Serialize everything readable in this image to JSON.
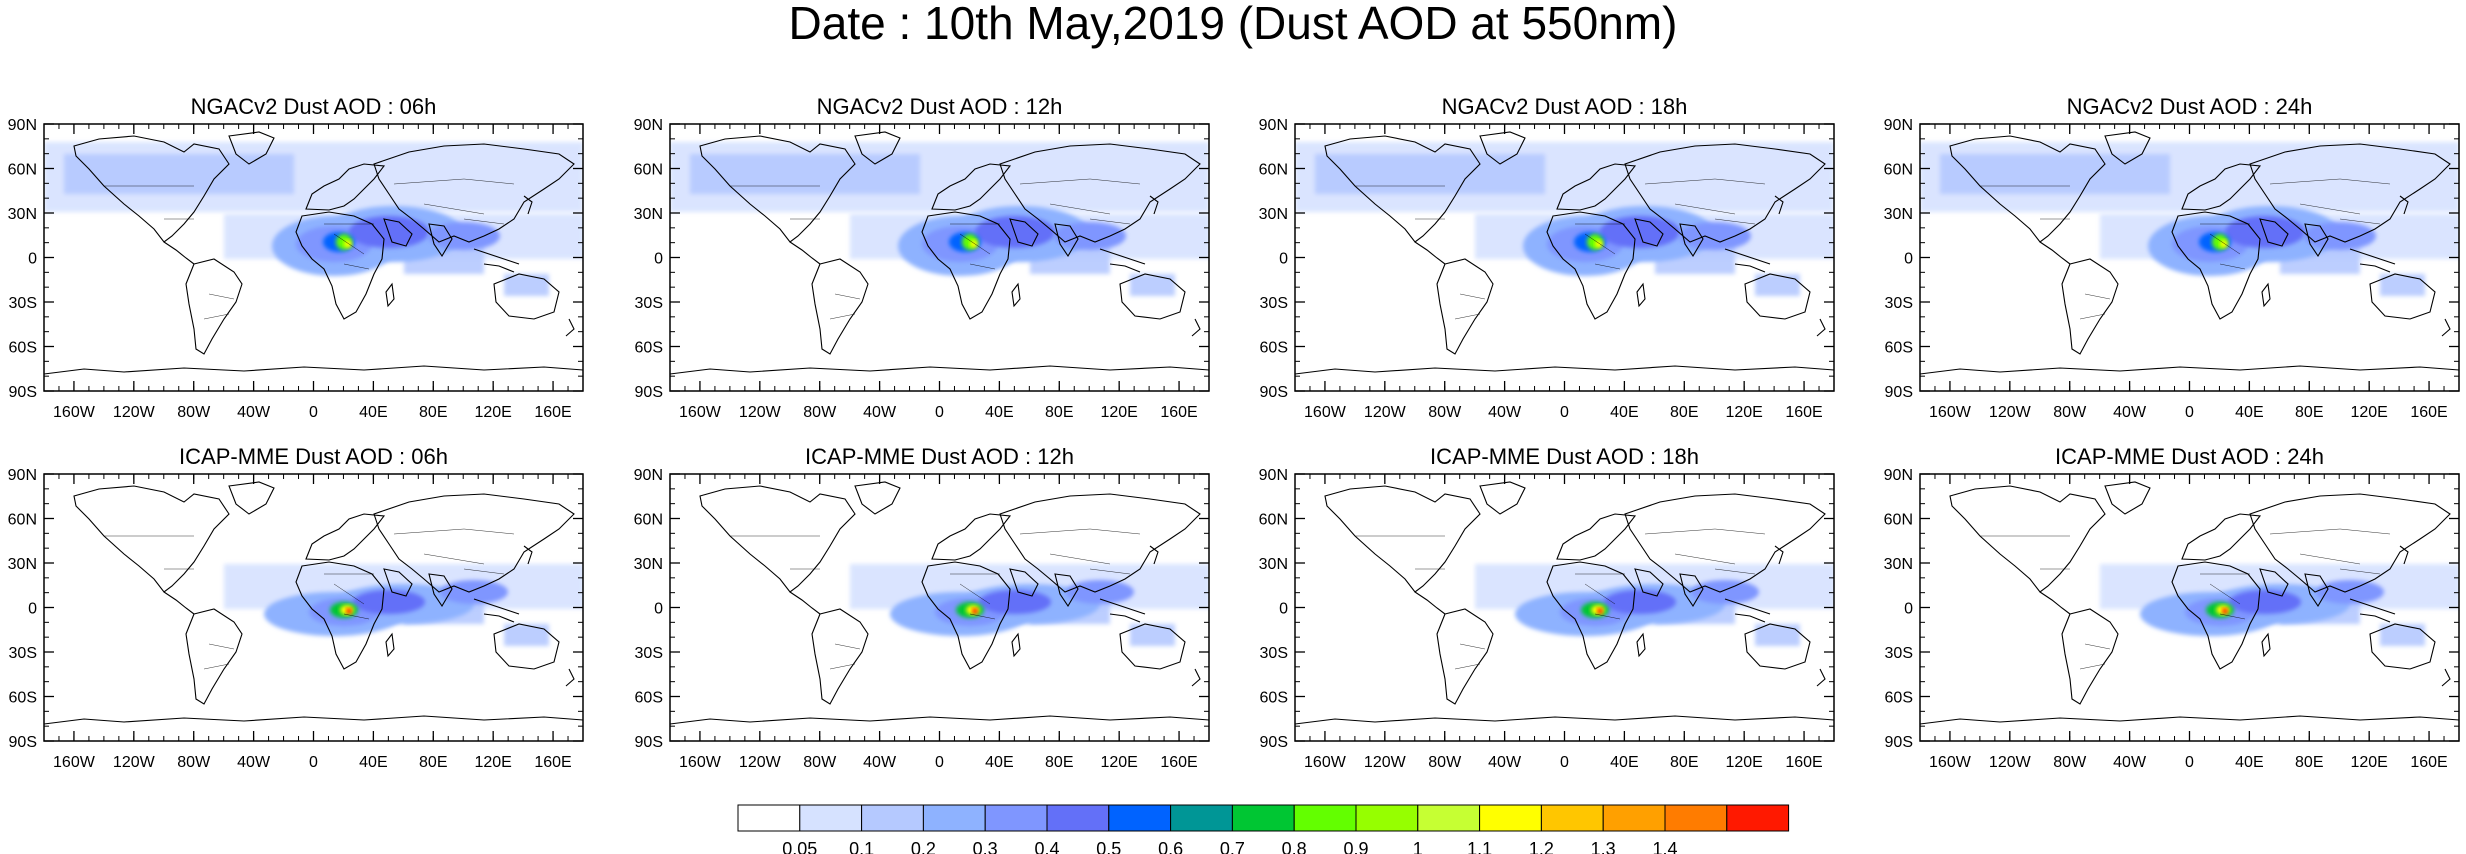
{
  "title": "Date : 10th May,2019 (Dust AOD at 550nm)",
  "panels": [
    {
      "title": "NGACv2 Dust AOD : 06h",
      "model": "NGACv2",
      "hour": "06h"
    },
    {
      "title": "NGACv2 Dust AOD : 12h",
      "model": "NGACv2",
      "hour": "12h"
    },
    {
      "title": "NGACv2 Dust AOD : 18h",
      "model": "NGACv2",
      "hour": "18h"
    },
    {
      "title": "NGACv2 Dust AOD : 24h",
      "model": "NGACv2",
      "hour": "24h"
    },
    {
      "title": "ICAP-MME Dust AOD : 06h",
      "model": "ICAP-MME",
      "hour": "06h"
    },
    {
      "title": "ICAP-MME Dust AOD : 12h",
      "model": "ICAP-MME",
      "hour": "12h"
    },
    {
      "title": "ICAP-MME Dust AOD : 18h",
      "model": "ICAP-MME",
      "hour": "18h"
    },
    {
      "title": "ICAP-MME Dust AOD : 24h",
      "model": "ICAP-MME",
      "hour": "24h"
    }
  ],
  "lat_ticks": [
    "90N",
    "60N",
    "30N",
    "0",
    "30S",
    "60S",
    "90S"
  ],
  "lat_values": [
    90,
    60,
    30,
    0,
    -30,
    -60,
    -90
  ],
  "lon_ticks": [
    "160W",
    "120W",
    "80W",
    "40W",
    "0",
    "40E",
    "80E",
    "120E",
    "160E"
  ],
  "lon_values": [
    -160,
    -120,
    -80,
    -40,
    0,
    40,
    80,
    120,
    160
  ],
  "colorbar": {
    "labels": [
      "0.05",
      "0.1",
      "0.2",
      "0.3",
      "0.4",
      "0.5",
      "0.6",
      "0.7",
      "0.8",
      "0.9",
      "1",
      "1.1",
      "1.2",
      "1.3",
      "1.4"
    ],
    "colors": [
      "#ffffff",
      "#d6e2ff",
      "#b5c9ff",
      "#8eb2ff",
      "#7f96ff",
      "#6370f8",
      "#0063ff",
      "#009696",
      "#00c633",
      "#63ff00",
      "#96ff00",
      "#c6ff33",
      "#ffff00",
      "#ffc600",
      "#ffa000",
      "#ff7c00",
      "#ff1900"
    ]
  }
}
